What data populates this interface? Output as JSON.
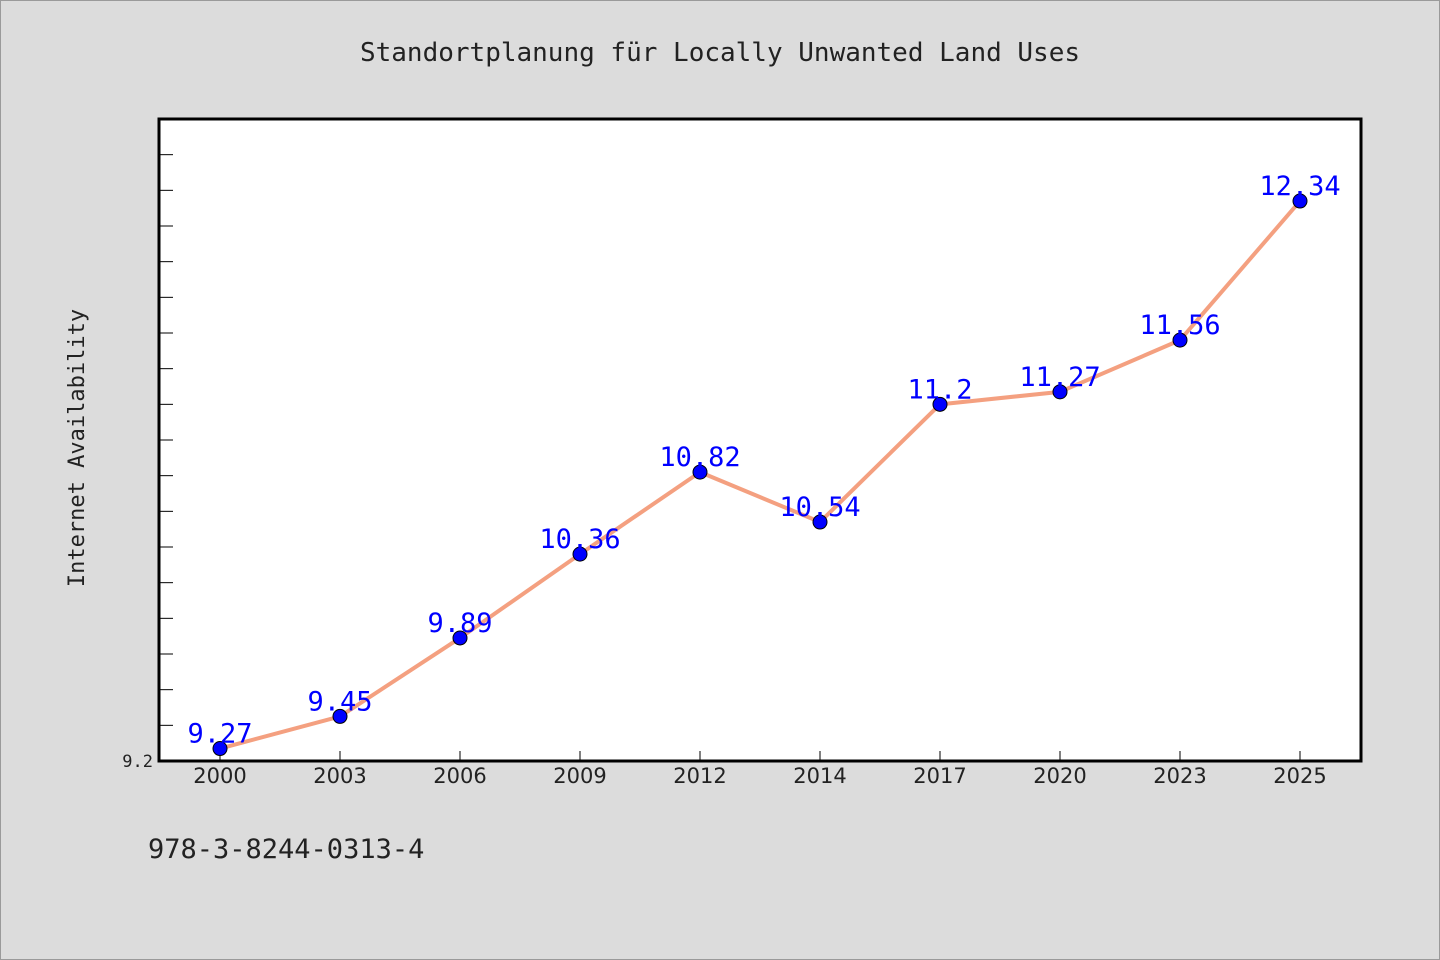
{
  "chart_data": {
    "type": "line",
    "title": "Standortplanung für Locally Unwanted Land Uses",
    "xlabel": "",
    "ylabel": "Internet Availability",
    "categories": [
      "2000",
      "2003",
      "2006",
      "2009",
      "2012",
      "2014",
      "2017",
      "2020",
      "2023",
      "2025"
    ],
    "series": [
      {
        "values": [
          9.27,
          9.45,
          9.89,
          10.36,
          10.82,
          10.54,
          11.2,
          11.27,
          11.56,
          12.34
        ],
        "data_labels": [
          "9.27",
          "9.45",
          "9.89",
          "10.36",
          "10.82",
          "10.54",
          "11.2",
          "11.27",
          "11.56",
          "12.34"
        ],
        "line_color": "#f4a080",
        "marker_color": "#0000ff",
        "label_color": "#0000ff"
      }
    ],
    "y_tick_labels": [
      "9.2"
    ],
    "ylim": [
      9.2,
      12.8
    ],
    "grid": false,
    "legend": "none"
  },
  "footer": {
    "isbn": "978-3-8244-0313-4"
  },
  "colors": {
    "background": "#dcdcdc",
    "plot_background": "#ffffff",
    "axis": "#000000",
    "text": "#222222"
  }
}
